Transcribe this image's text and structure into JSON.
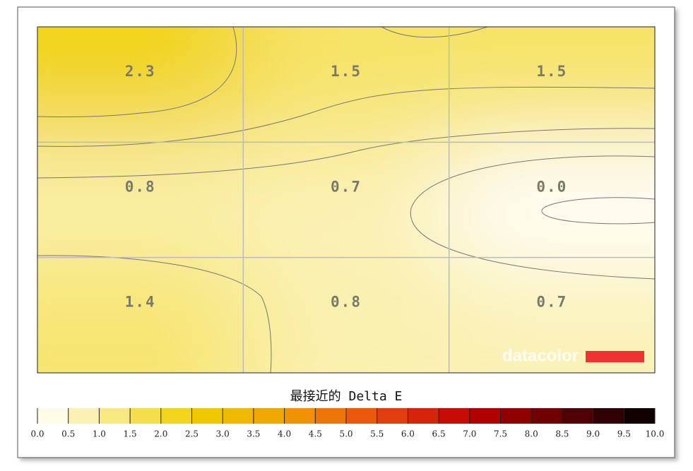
{
  "chart_data": {
    "type": "heatmap",
    "title": "最接近的 Delta E",
    "watermark": "datacolor",
    "values": [
      [
        2.3,
        1.5,
        1.5
      ],
      [
        0.8,
        0.7,
        0.0
      ],
      [
        1.4,
        0.8,
        0.7
      ]
    ],
    "value_labels": [
      [
        "2.3",
        "1.5",
        "1.5"
      ],
      [
        "0.8",
        "0.7",
        "0.0"
      ],
      [
        "1.4",
        "0.8",
        "0.7"
      ]
    ],
    "colorscale": [
      [
        0,
        "#ffffff"
      ],
      [
        2.5,
        "#f0d000"
      ],
      [
        4,
        "#f0a000"
      ],
      [
        5.5,
        "#e84a10"
      ],
      [
        7,
        "#c00000"
      ],
      [
        8.5,
        "#600000"
      ],
      [
        10,
        "#000000"
      ]
    ],
    "clim": [
      0,
      10
    ],
    "cticks": [
      {
        "value": 0,
        "label": "0.0"
      },
      {
        "value": 0.5,
        "label": "0.5"
      },
      {
        "value": 1,
        "label": "1.0"
      },
      {
        "value": 1.5,
        "label": "1.5"
      },
      {
        "value": 2,
        "label": "2.0"
      },
      {
        "value": 2.5,
        "label": "2.5"
      },
      {
        "value": 3,
        "label": "3.0"
      },
      {
        "value": 3.5,
        "label": "3.5"
      },
      {
        "value": 4,
        "label": "4.0"
      },
      {
        "value": 4.5,
        "label": "4.5"
      },
      {
        "value": 5,
        "label": "5.0"
      },
      {
        "value": 5.5,
        "label": "5.5"
      },
      {
        "value": 6,
        "label": "6.0"
      },
      {
        "value": 6.5,
        "label": "6.5"
      },
      {
        "value": 7,
        "label": "7.0"
      },
      {
        "value": 7.5,
        "label": "7.5"
      },
      {
        "value": 8,
        "label": "8.0"
      },
      {
        "value": 8.5,
        "label": "8.5"
      },
      {
        "value": 9,
        "label": "9.0"
      },
      {
        "value": 9.5,
        "label": "9.5"
      },
      {
        "value": 10,
        "label": "10.0"
      }
    ],
    "grid": true
  }
}
